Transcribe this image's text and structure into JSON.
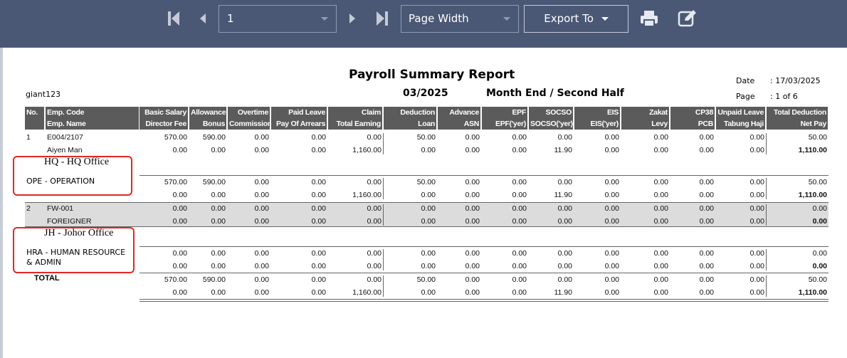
{
  "toolbar": {
    "page": "1",
    "zoom": "Page Width",
    "export": "Export To"
  },
  "report": {
    "title": "Payroll Summary Report",
    "company": "giant123",
    "period": "03/2025",
    "run": "Month End / Second Half",
    "date_label": "Date",
    "date": ": 17/03/2025",
    "page_label": "Page",
    "page": ": 1 of 6"
  },
  "columns": {
    "row1": [
      "No.",
      "Emp. Code",
      "Basic Salary",
      "Allowance",
      "Overtime",
      "Paid Leave",
      "Claim",
      "Deduction",
      "Advance",
      "EPF",
      "SOCSO",
      "EIS",
      "Zakat",
      "CP38",
      "Unpaid Leave",
      "Total Deduction"
    ],
    "row2": [
      "Emp. Name",
      "Director Fee",
      "Bonus",
      "Commission",
      "Pay Of Arrears",
      "Total Earning",
      "Loan",
      "ASN",
      "EPF('yer)",
      "SOCSO('yer)",
      "EIS('yer)",
      "Levy",
      "PCB",
      "Tabung Haji",
      "Net Pay"
    ]
  },
  "sections": [
    {
      "employees": [
        {
          "no": "1",
          "code": "E004/2107",
          "name": "Aiyen Man",
          "line1": [
            "570.00",
            "590.00",
            "0.00",
            "0.00",
            "0.00",
            "50.00",
            "0.00",
            "0.00",
            "0.00",
            "0.00",
            "0.00",
            "0.00",
            "0.00",
            "50.00"
          ],
          "line2": [
            "0.00",
            "0.00",
            "0.00",
            "0.00",
            "1,160.00",
            "0.00",
            "0.00",
            "0.00",
            "11.90",
            "0.00",
            "0.00",
            "0.00",
            "0.00",
            "1,110.00"
          ]
        }
      ],
      "branch": "HQ - HQ Office",
      "department": "OPE - OPERATION",
      "subtotal": {
        "line1": [
          "570.00",
          "590.00",
          "0.00",
          "0.00",
          "0.00",
          "50.00",
          "0.00",
          "0.00",
          "0.00",
          "0.00",
          "0.00",
          "0.00",
          "0.00",
          "50.00"
        ],
        "line2": [
          "0.00",
          "0.00",
          "0.00",
          "0.00",
          "1,160.00",
          "0.00",
          "0.00",
          "0.00",
          "11.90",
          "0.00",
          "0.00",
          "0.00",
          "0.00",
          "1,110.00"
        ]
      }
    },
    {
      "employees": [
        {
          "no": "2",
          "code": "FW-001",
          "name": "FOREIGNER",
          "line1": [
            "0.00",
            "0.00",
            "0.00",
            "0.00",
            "0.00",
            "0.00",
            "0.00",
            "0.00",
            "0.00",
            "0.00",
            "0.00",
            "0.00",
            "0.00",
            "0.00"
          ],
          "line2": [
            "0.00",
            "0.00",
            "0.00",
            "0.00",
            "0.00",
            "0.00",
            "0.00",
            "0.00",
            "0.00",
            "0.00",
            "0.00",
            "0.00",
            "0.00",
            "0.00"
          ]
        }
      ],
      "branch": "JH - Johor Office",
      "department": "HRA - HUMAN RESOURCE & ADMIN",
      "subtotal": {
        "line1": [
          "0.00",
          "0.00",
          "0.00",
          "0.00",
          "0.00",
          "0.00",
          "0.00",
          "0.00",
          "0.00",
          "0.00",
          "0.00",
          "0.00",
          "0.00",
          "0.00"
        ],
        "line2": [
          "0.00",
          "0.00",
          "0.00",
          "0.00",
          "0.00",
          "0.00",
          "0.00",
          "0.00",
          "0.00",
          "0.00",
          "0.00",
          "0.00",
          "0.00",
          "0.00"
        ]
      }
    }
  ],
  "total": {
    "label": "TOTAL",
    "line1": [
      "570.00",
      "590.00",
      "0.00",
      "0.00",
      "0.00",
      "50.00",
      "0.00",
      "0.00",
      "0.00",
      "0.00",
      "0.00",
      "0.00",
      "0.00",
      "50.00"
    ],
    "line2": [
      "0.00",
      "0.00",
      "0.00",
      "0.00",
      "1,160.00",
      "0.00",
      "0.00",
      "0.00",
      "11.90",
      "0.00",
      "0.00",
      "0.00",
      "0.00",
      "1,110.00"
    ]
  }
}
